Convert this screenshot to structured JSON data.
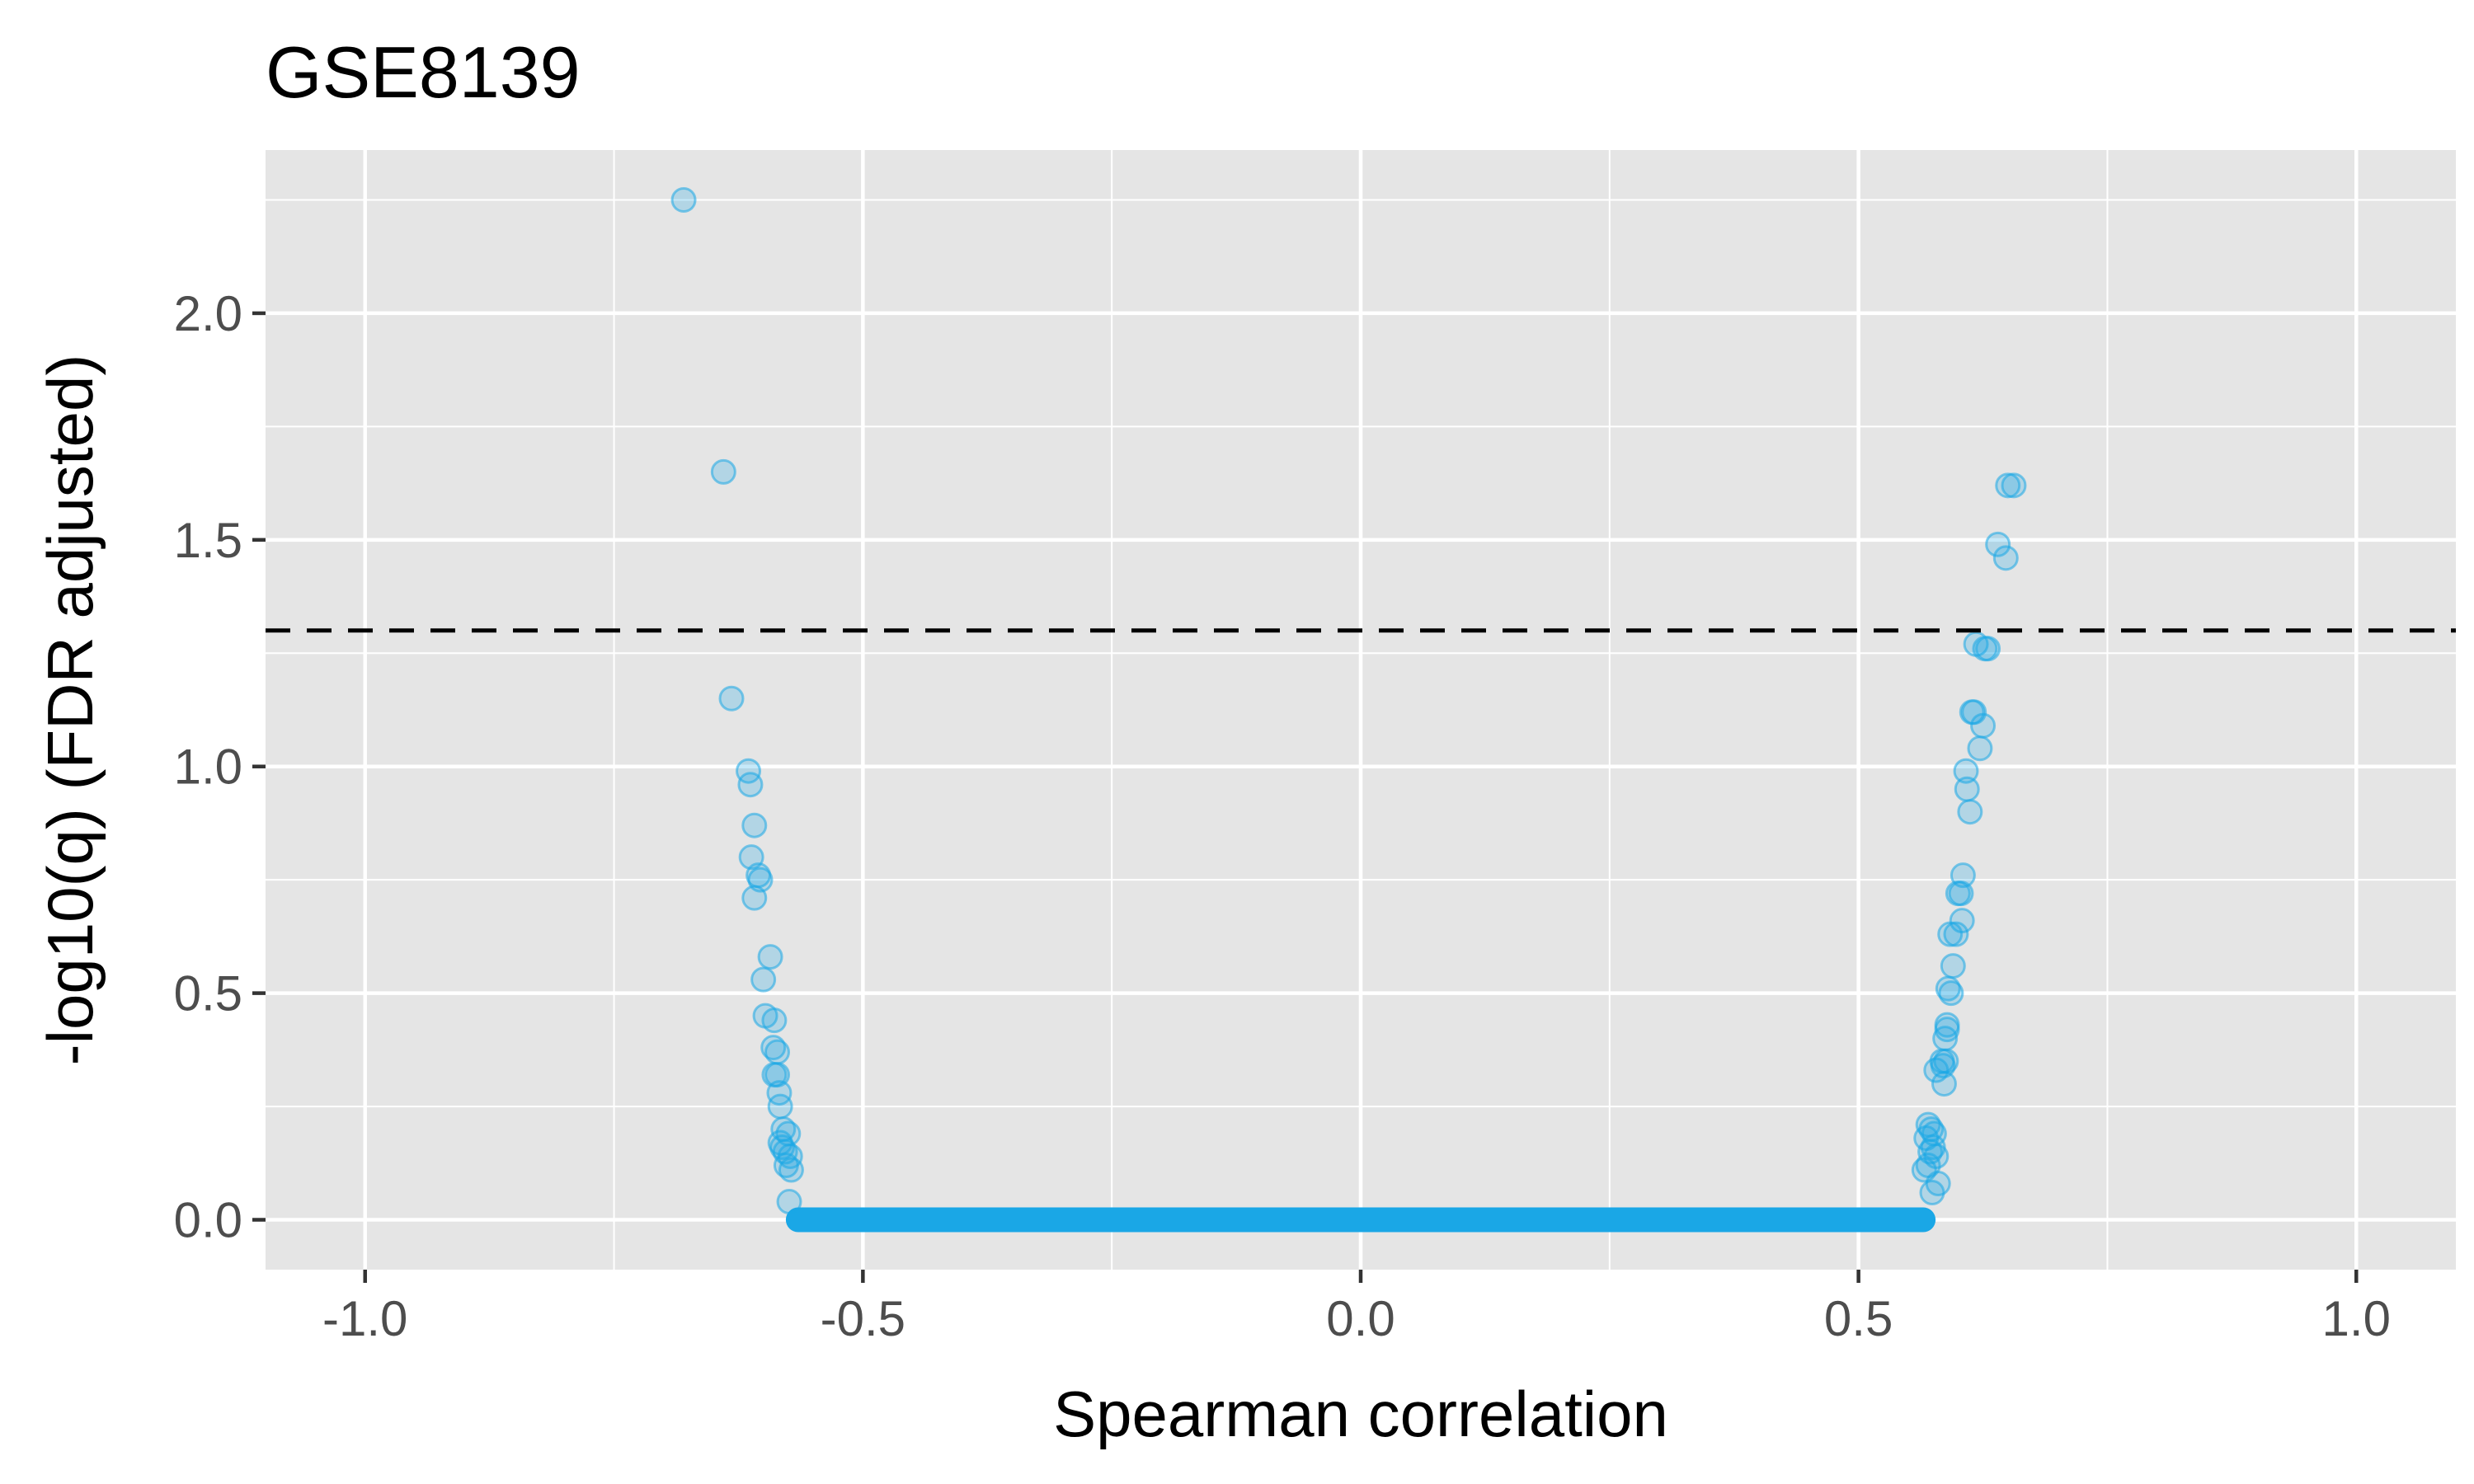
{
  "chart_data": {
    "type": "scatter",
    "title": "GSE8139",
    "xlabel": "Spearman correlation",
    "ylabel": "-log10(q) (FDR adjusted)",
    "xlim": [
      -1.1,
      1.1
    ],
    "ylim": [
      -0.11,
      2.36
    ],
    "x_ticks": [
      {
        "value": -1.0,
        "label": "-1.0"
      },
      {
        "value": -0.5,
        "label": "-0.5"
      },
      {
        "value": 0.0,
        "label": "0.0"
      },
      {
        "value": 0.5,
        "label": "0.5"
      },
      {
        "value": 1.0,
        "label": "1.0"
      }
    ],
    "y_ticks": [
      {
        "value": 0.0,
        "label": "0.0"
      },
      {
        "value": 0.5,
        "label": "0.5"
      },
      {
        "value": 1.0,
        "label": "1.0"
      },
      {
        "value": 1.5,
        "label": "1.5"
      },
      {
        "value": 2.0,
        "label": "2.0"
      }
    ],
    "x_minor_grid": [
      -0.75,
      -0.25,
      0.25,
      0.75
    ],
    "y_minor_grid": [
      0.25,
      0.75,
      1.25,
      1.75,
      2.25
    ],
    "grid": true,
    "threshold_line": {
      "y": 1.3,
      "style": "dashed",
      "color": "#000000"
    },
    "point_color": "#1aa7e6",
    "point_alpha": 0.25,
    "panel_background": "#e5e5e5",
    "zero_band": {
      "y": 0.0,
      "x_from": -0.565,
      "x_to": 0.565
    },
    "series": [
      {
        "x": [
          -0.68,
          -0.64,
          -0.632,
          -0.615,
          -0.613,
          -0.609,
          -0.605,
          -0.603,
          -0.612,
          -0.609,
          -0.593,
          -0.6,
          -0.598,
          -0.589,
          -0.59,
          -0.586,
          -0.589,
          -0.586,
          -0.584,
          -0.583,
          -0.575,
          -0.58,
          -0.583,
          -0.581,
          -0.578,
          -0.573,
          -0.577,
          -0.572,
          -0.574,
          0.57,
          0.573,
          0.576,
          0.568,
          0.575,
          0.572,
          0.578,
          0.57,
          0.566,
          0.58,
          0.574,
          0.585,
          0.578,
          0.584,
          0.588,
          0.586,
          0.587,
          0.589,
          0.589,
          0.59,
          0.593,
          0.595,
          0.592,
          0.598,
          0.604,
          0.6,
          0.603,
          0.605,
          0.609,
          0.608,
          0.612,
          0.616,
          0.614,
          0.622,
          0.625,
          0.618,
          0.627,
          0.63,
          0.64,
          0.648,
          0.65,
          0.656
        ],
        "y": [
          2.25,
          1.65,
          1.15,
          0.99,
          0.96,
          0.87,
          0.76,
          0.75,
          0.8,
          0.71,
          0.58,
          0.53,
          0.45,
          0.44,
          0.38,
          0.37,
          0.32,
          0.32,
          0.28,
          0.25,
          0.19,
          0.2,
          0.17,
          0.16,
          0.15,
          0.14,
          0.12,
          0.11,
          0.04,
          0.21,
          0.2,
          0.19,
          0.18,
          0.16,
          0.15,
          0.14,
          0.12,
          0.11,
          0.08,
          0.06,
          0.34,
          0.33,
          0.35,
          0.35,
          0.3,
          0.4,
          0.42,
          0.43,
          0.51,
          0.5,
          0.56,
          0.63,
          0.63,
          0.66,
          0.72,
          0.72,
          0.76,
          0.95,
          0.99,
          0.9,
          1.12,
          1.12,
          1.04,
          1.09,
          1.27,
          1.26,
          1.26,
          1.49,
          1.46,
          1.62,
          1.62
        ]
      }
    ]
  }
}
